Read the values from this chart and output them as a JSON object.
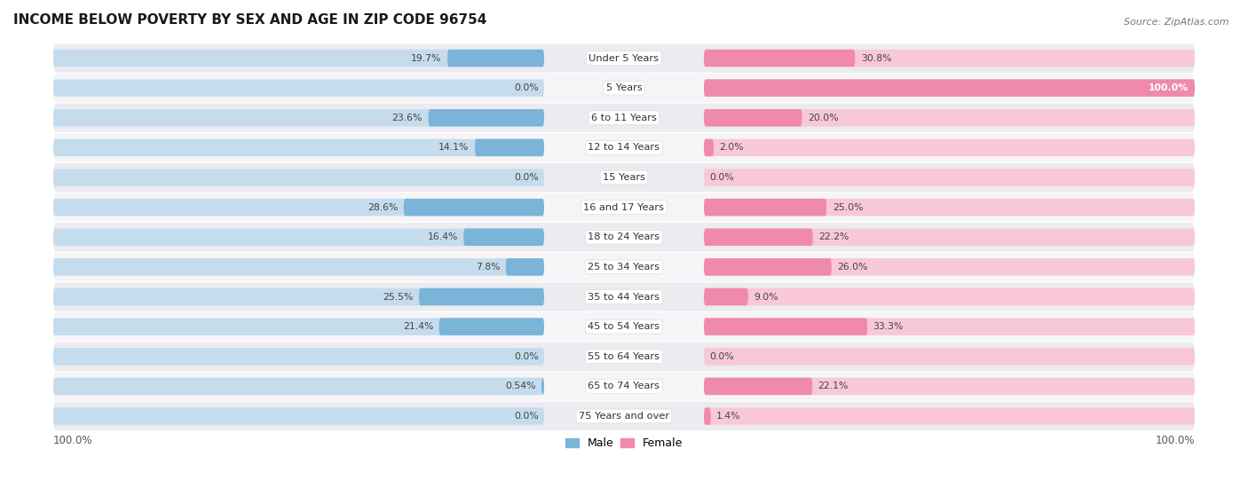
{
  "title": "INCOME BELOW POVERTY BY SEX AND AGE IN ZIP CODE 96754",
  "source": "Source: ZipAtlas.com",
  "categories": [
    "Under 5 Years",
    "5 Years",
    "6 to 11 Years",
    "12 to 14 Years",
    "15 Years",
    "16 and 17 Years",
    "18 to 24 Years",
    "25 to 34 Years",
    "35 to 44 Years",
    "45 to 54 Years",
    "55 to 64 Years",
    "65 to 74 Years",
    "75 Years and over"
  ],
  "male_values": [
    19.7,
    0.0,
    23.6,
    14.1,
    0.0,
    28.6,
    16.4,
    7.8,
    25.5,
    21.4,
    0.0,
    0.54,
    0.0
  ],
  "female_values": [
    30.8,
    100.0,
    20.0,
    2.0,
    0.0,
    25.0,
    22.2,
    26.0,
    9.0,
    33.3,
    0.0,
    22.1,
    1.4
  ],
  "male_labels": [
    "19.7%",
    "0.0%",
    "23.6%",
    "14.1%",
    "0.0%",
    "28.6%",
    "16.4%",
    "7.8%",
    "25.5%",
    "21.4%",
    "0.0%",
    "0.54%",
    "0.0%"
  ],
  "female_labels": [
    "30.8%",
    "100.0%",
    "20.0%",
    "2.0%",
    "0.0%",
    "25.0%",
    "22.2%",
    "26.0%",
    "9.0%",
    "33.3%",
    "0.0%",
    "22.1%",
    "1.4%"
  ],
  "male_color_full": "#7ab4d8",
  "female_color_full": "#f08aaa",
  "male_color_light": "#c5dced",
  "female_color_light": "#f8c8d8",
  "row_bg_dark": "#ebebf0",
  "row_bg_light": "#f5f5f8",
  "max_val": 100.0,
  "bar_height": 0.58,
  "x_axis_label_left": "100.0%",
  "x_axis_label_right": "100.0%",
  "legend_male": "Male",
  "legend_female": "Female"
}
